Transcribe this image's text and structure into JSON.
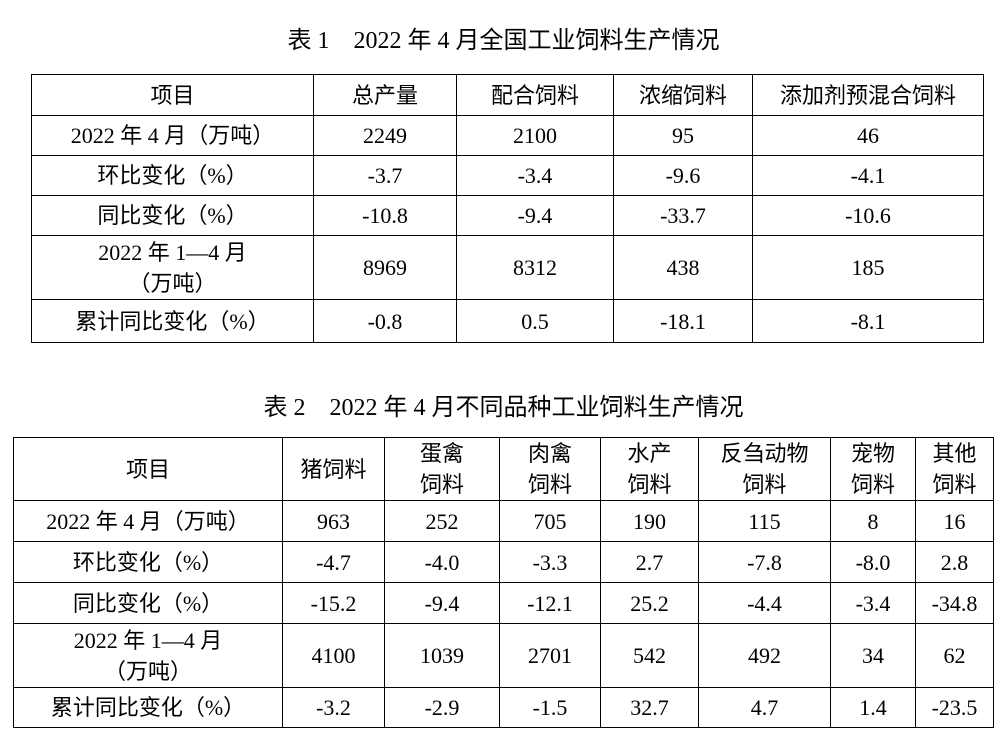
{
  "page": {
    "background_color": "#ffffff",
    "text_color": "#000000"
  },
  "table1": {
    "title": "表 1　2022 年 4 月全国工业饲料生产情况",
    "columns": [
      "项目",
      "总产量",
      "配合饲料",
      "浓缩饲料",
      "添加剂预混合饲料"
    ],
    "rows": [
      {
        "label": "2022 年 4 月（万吨）",
        "tall": false,
        "values": [
          "2249",
          "2100",
          "95",
          "46"
        ]
      },
      {
        "label": "环比变化（%）",
        "tall": false,
        "values": [
          "-3.7",
          "-3.4",
          "-9.6",
          "-4.1"
        ]
      },
      {
        "label": "同比变化（%）",
        "tall": false,
        "values": [
          "-10.8",
          "-9.4",
          "-33.7",
          "-10.6"
        ]
      },
      {
        "label": "2022 年 1—4 月\n（万吨）",
        "tall": true,
        "values": [
          "8969",
          "8312",
          "438",
          "185"
        ]
      },
      {
        "label": "累计同比变化（%）",
        "tall": false,
        "values": [
          "-0.8",
          "0.5",
          "-18.1",
          "-8.1"
        ]
      }
    ]
  },
  "table2": {
    "title": "表 2　2022 年 4 月不同品种工业饲料生产情况",
    "columns": [
      "项目",
      "猪饲料",
      "蛋禽\n饲料",
      "肉禽\n饲料",
      "水产\n饲料",
      "反刍动物\n饲料",
      "宠物\n饲料",
      "其他\n饲料"
    ],
    "rows": [
      {
        "label": "2022 年 4 月（万吨）",
        "tall": false,
        "values": [
          "963",
          "252",
          "705",
          "190",
          "115",
          "8",
          "16"
        ]
      },
      {
        "label": "环比变化（%）",
        "tall": false,
        "values": [
          "-4.7",
          "-4.0",
          "-3.3",
          "2.7",
          "-7.8",
          "-8.0",
          "2.8"
        ]
      },
      {
        "label": "同比变化（%）",
        "tall": false,
        "values": [
          "-15.2",
          "-9.4",
          "-12.1",
          "25.2",
          "-4.4",
          "-3.4",
          "-34.8"
        ]
      },
      {
        "label": "2022 年 1—4 月\n（万吨）",
        "tall": true,
        "values": [
          "4100",
          "1039",
          "2701",
          "542",
          "492",
          "34",
          "62"
        ]
      },
      {
        "label": "累计同比变化（%）",
        "tall": false,
        "values": [
          "-3.2",
          "-2.9",
          "-1.5",
          "32.7",
          "4.7",
          "1.4",
          "-23.5"
        ]
      }
    ]
  }
}
